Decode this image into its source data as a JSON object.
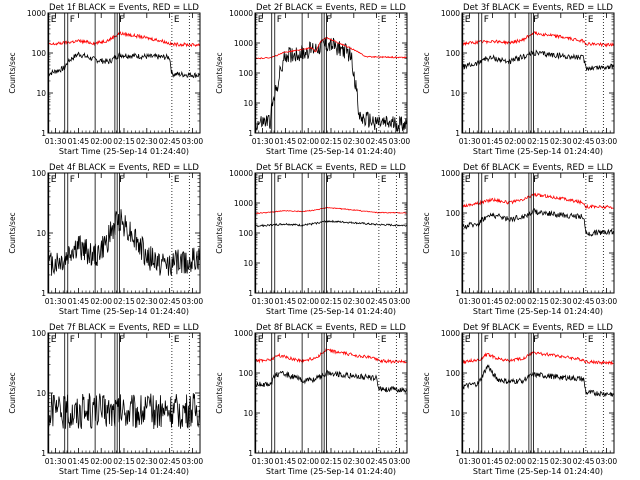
{
  "colors": {
    "black_series": "#000000",
    "red_series": "#ff0000",
    "axis": "#000000"
  },
  "common": {
    "xlabel": "Start Time (25-Sep-14 01:24:40)",
    "ylabel": "Counts/sec",
    "x_tick_labels": [
      "01:30",
      "01:45",
      "02:00",
      "02:15",
      "02:30",
      "02:45",
      "03:00"
    ],
    "x_range_minutes": [
      85,
      185
    ],
    "x_ticks_minutes": [
      90,
      105,
      120,
      135,
      150,
      165,
      180
    ],
    "yscale": "log",
    "markers": [
      {
        "label": "E",
        "minute": 85.5,
        "style": "solid"
      },
      {
        "label": "F",
        "minute": 98,
        "style": "solid"
      },
      {
        "label": "F",
        "minute": 130.5,
        "style": "solid"
      },
      {
        "label": "E",
        "minute": 166.5,
        "style": "dotted"
      }
    ],
    "extra_solid_lines_minutes": [
      96,
      116,
      129,
      132
    ],
    "extra_dotted_lines_minutes": [
      178
    ]
  },
  "chart_data": [
    {
      "type": "line",
      "title": "Det 1f BLACK = Events, RED = LLD",
      "ylim": [
        1,
        1000
      ],
      "ytick_labels": [
        "1",
        "10",
        "100",
        "1000"
      ],
      "series": [
        {
          "name": "BLACK = Events",
          "color": "black",
          "segments": [
            [
              85,
              30
            ],
            [
              96,
              42
            ],
            [
              98,
              62
            ],
            [
              105,
              95
            ],
            [
              116,
              68
            ],
            [
              125,
              60
            ],
            [
              132,
              90
            ],
            [
              148,
              82
            ],
            [
              165,
              78
            ],
            [
              166.5,
              30
            ],
            [
              183,
              28
            ]
          ],
          "noise": 0.07
        },
        {
          "name": "RED = LLD",
          "color": "red",
          "segments": [
            [
              85,
              160
            ],
            [
              96,
              180
            ],
            [
              105,
              200
            ],
            [
              116,
              175
            ],
            [
              125,
              210
            ],
            [
              132,
              310
            ],
            [
              145,
              260
            ],
            [
              160,
              200
            ],
            [
              166.5,
              165
            ],
            [
              183,
              160
            ]
          ],
          "noise": 0.04
        }
      ]
    },
    {
      "type": "line",
      "title": "Det 2f BLACK = Events, RED = LLD",
      "ylim": [
        1,
        10000
      ],
      "ytick_labels": [
        "1",
        "10",
        "100",
        "1000",
        "10000"
      ],
      "series": [
        {
          "name": "BLACK = Events",
          "color": "black",
          "segments": [
            [
              85,
              2
            ],
            [
              95,
              2.5
            ],
            [
              96,
              6
            ],
            [
              100,
              50
            ],
            [
              105,
              400
            ],
            [
              116,
              450
            ],
            [
              122,
              600
            ],
            [
              128,
              800
            ],
            [
              132,
              900
            ],
            [
              140,
              700
            ],
            [
              148,
              400
            ],
            [
              151,
              50
            ],
            [
              154,
              3
            ],
            [
              170,
              2
            ],
            [
              183,
              2
            ]
          ],
          "noise": 0.28
        },
        {
          "name": "RED = LLD",
          "color": "red",
          "segments": [
            [
              85,
              300
            ],
            [
              96,
              330
            ],
            [
              105,
              500
            ],
            [
              116,
              600
            ],
            [
              122,
              700
            ],
            [
              125,
              500
            ],
            [
              128,
              1100
            ],
            [
              132,
              1500
            ],
            [
              140,
              1000
            ],
            [
              150,
              600
            ],
            [
              158,
              350
            ],
            [
              183,
              330
            ]
          ],
          "noise": 0.02
        }
      ]
    },
    {
      "type": "line",
      "title": "Det 3f BLACK = Events, RED = LLD",
      "ylim": [
        1,
        1000
      ],
      "ytick_labels": [
        "1",
        "10",
        "100",
        "1000"
      ],
      "series": [
        {
          "name": "BLACK = Events",
          "color": "black",
          "segments": [
            [
              85,
              45
            ],
            [
              96,
              55
            ],
            [
              98,
              70
            ],
            [
              105,
              75
            ],
            [
              116,
              60
            ],
            [
              125,
              80
            ],
            [
              132,
              100
            ],
            [
              150,
              85
            ],
            [
              165,
              75
            ],
            [
              166.5,
              42
            ],
            [
              183,
              45
            ]
          ],
          "noise": 0.07
        },
        {
          "name": "RED = LLD",
          "color": "red",
          "segments": [
            [
              85,
              170
            ],
            [
              96,
              185
            ],
            [
              105,
              200
            ],
            [
              116,
              180
            ],
            [
              125,
              210
            ],
            [
              132,
              320
            ],
            [
              148,
              260
            ],
            [
              165,
              200
            ],
            [
              166.5,
              170
            ],
            [
              183,
              160
            ]
          ],
          "noise": 0.04
        }
      ]
    },
    {
      "type": "line",
      "title": "Det 4f BLACK = Events, RED = LLD",
      "ylim": [
        1,
        100
      ],
      "ytick_labels": [
        "1",
        "10",
        "100"
      ],
      "series": [
        {
          "name": "BLACK = Events",
          "color": "black",
          "segments": [
            [
              85,
              3
            ],
            [
              96,
              3.5
            ],
            [
              100,
              5
            ],
            [
              105,
              6
            ],
            [
              116,
              4
            ],
            [
              122,
              6
            ],
            [
              128,
              12
            ],
            [
              132,
              18
            ],
            [
              140,
              10
            ],
            [
              150,
              4
            ],
            [
              160,
              3
            ],
            [
              183,
              3.5
            ]
          ],
          "noise": 0.22
        }
      ]
    },
    {
      "type": "line",
      "title": "Det 5f BLACK = Events, RED = LLD",
      "ylim": [
        1,
        10000
      ],
      "ytick_labels": [
        "1",
        "10",
        "100",
        "1000",
        "10000"
      ],
      "series": [
        {
          "name": "BLACK = Events",
          "color": "black",
          "segments": [
            [
              85,
              170
            ],
            [
              96,
              185
            ],
            [
              105,
              200
            ],
            [
              116,
              180
            ],
            [
              125,
              210
            ],
            [
              132,
              250
            ],
            [
              150,
              220
            ],
            [
              165,
              190
            ],
            [
              183,
              180
            ]
          ],
          "noise": 0.03
        },
        {
          "name": "RED = LLD",
          "color": "red",
          "segments": [
            [
              85,
              450
            ],
            [
              96,
              500
            ],
            [
              105,
              550
            ],
            [
              116,
              520
            ],
            [
              125,
              580
            ],
            [
              132,
              700
            ],
            [
              148,
              600
            ],
            [
              165,
              480
            ],
            [
              183,
              470
            ]
          ],
          "noise": 0.015
        }
      ]
    },
    {
      "type": "line",
      "title": "Det 6f BLACK = Events, RED = LLD",
      "ylim": [
        1,
        1000
      ],
      "ytick_labels": [
        "1",
        "10",
        "100",
        "1000"
      ],
      "series": [
        {
          "name": "BLACK = Events",
          "color": "black",
          "segments": [
            [
              85,
              45
            ],
            [
              96,
              55
            ],
            [
              98,
              70
            ],
            [
              105,
              90
            ],
            [
              116,
              70
            ],
            [
              125,
              80
            ],
            [
              132,
              110
            ],
            [
              148,
              90
            ],
            [
              165,
              80
            ],
            [
              166.5,
              30
            ],
            [
              183,
              35
            ]
          ],
          "noise": 0.07
        },
        {
          "name": "RED = LLD",
          "color": "red",
          "segments": [
            [
              85,
              150
            ],
            [
              96,
              175
            ],
            [
              105,
              220
            ],
            [
              116,
              180
            ],
            [
              125,
              210
            ],
            [
              132,
              290
            ],
            [
              148,
              240
            ],
            [
              165,
              180
            ],
            [
              166.5,
              145
            ],
            [
              183,
              140
            ]
          ],
          "noise": 0.04
        }
      ]
    },
    {
      "type": "line",
      "title": "Det 7f BLACK = Events, RED = LLD",
      "ylim": [
        1,
        100
      ],
      "ytick_labels": [
        "1",
        "10",
        "100"
      ],
      "series": [
        {
          "name": "BLACK = Events",
          "color": "black",
          "segments": [
            [
              85,
              5
            ],
            [
              120,
              5
            ],
            [
              150,
              5
            ],
            [
              183,
              5
            ]
          ],
          "noise": 0.3
        }
      ]
    },
    {
      "type": "line",
      "title": "Det 8f BLACK = Events, RED = LLD",
      "ylim": [
        1,
        1000
      ],
      "ytick_labels": [
        "1",
        "10",
        "100",
        "1000"
      ],
      "series": [
        {
          "name": "BLACK = Events",
          "color": "black",
          "segments": [
            [
              85,
              50
            ],
            [
              96,
              55
            ],
            [
              98,
              90
            ],
            [
              105,
              95
            ],
            [
              116,
              65
            ],
            [
              125,
              70
            ],
            [
              132,
              100
            ],
            [
              148,
              85
            ],
            [
              165,
              75
            ],
            [
              166.5,
              40
            ],
            [
              183,
              38
            ]
          ],
          "noise": 0.07
        },
        {
          "name": "RED = LLD",
          "color": "red",
          "segments": [
            [
              85,
              200
            ],
            [
              96,
              220
            ],
            [
              100,
              280
            ],
            [
              105,
              250
            ],
            [
              116,
              200
            ],
            [
              125,
              240
            ],
            [
              132,
              370
            ],
            [
              148,
              290
            ],
            [
              165,
              230
            ],
            [
              166.5,
              200
            ],
            [
              183,
              190
            ]
          ],
          "noise": 0.04
        }
      ]
    },
    {
      "type": "line",
      "title": "Det 9f BLACK = Events, RED = LLD",
      "ylim": [
        1,
        1000
      ],
      "ytick_labels": [
        "1",
        "10",
        "100",
        "1000"
      ],
      "series": [
        {
          "name": "BLACK = Events",
          "color": "black",
          "segments": [
            [
              85,
              45
            ],
            [
              96,
              55
            ],
            [
              98,
              80
            ],
            [
              102,
              150
            ],
            [
              108,
              70
            ],
            [
              116,
              60
            ],
            [
              125,
              65
            ],
            [
              132,
              90
            ],
            [
              148,
              80
            ],
            [
              165,
              70
            ],
            [
              166.5,
              32
            ],
            [
              183,
              30
            ]
          ],
          "noise": 0.07
        },
        {
          "name": "RED = LLD",
          "color": "red",
          "segments": [
            [
              85,
              190
            ],
            [
              96,
              210
            ],
            [
              102,
              300
            ],
            [
              108,
              230
            ],
            [
              116,
              200
            ],
            [
              125,
              230
            ],
            [
              132,
              320
            ],
            [
              148,
              270
            ],
            [
              165,
              210
            ],
            [
              166.5,
              190
            ],
            [
              183,
              180
            ]
          ],
          "noise": 0.04
        }
      ]
    }
  ]
}
